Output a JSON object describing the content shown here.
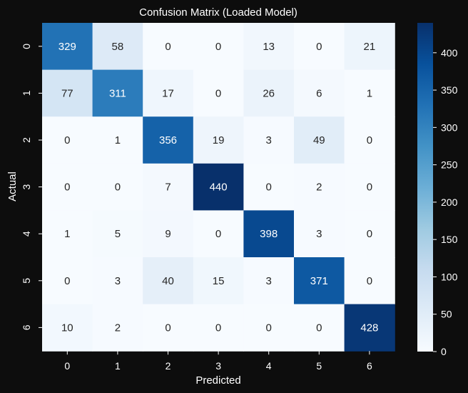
{
  "chart_data": {
    "type": "heatmap",
    "title": "Confusion Matrix (Loaded Model)",
    "xlabel": "Predicted",
    "ylabel": "Actual",
    "x_categories": [
      "0",
      "1",
      "2",
      "3",
      "4",
      "5",
      "6"
    ],
    "y_categories": [
      "0",
      "1",
      "2",
      "3",
      "4",
      "5",
      "6"
    ],
    "values": [
      [
        329,
        58,
        0,
        0,
        13,
        0,
        21
      ],
      [
        77,
        311,
        17,
        0,
        26,
        6,
        1
      ],
      [
        0,
        1,
        356,
        19,
        3,
        49,
        0
      ],
      [
        0,
        0,
        7,
        440,
        0,
        2,
        0
      ],
      [
        1,
        5,
        9,
        0,
        398,
        3,
        0
      ],
      [
        0,
        3,
        40,
        15,
        3,
        371,
        0
      ],
      [
        10,
        2,
        0,
        0,
        0,
        0,
        428
      ]
    ],
    "colormap": "Blues",
    "vmin": 0,
    "vmax": 440,
    "colorbar_ticks": [
      "0",
      "50",
      "100",
      "150",
      "200",
      "250",
      "300",
      "350",
      "400"
    ],
    "colors": {
      "background": "#0d0d0d",
      "text_light": "#ffffff",
      "text_dark": "#262626",
      "cmap_low": "#f7fbff",
      "cmap_high": "#08306b"
    }
  }
}
